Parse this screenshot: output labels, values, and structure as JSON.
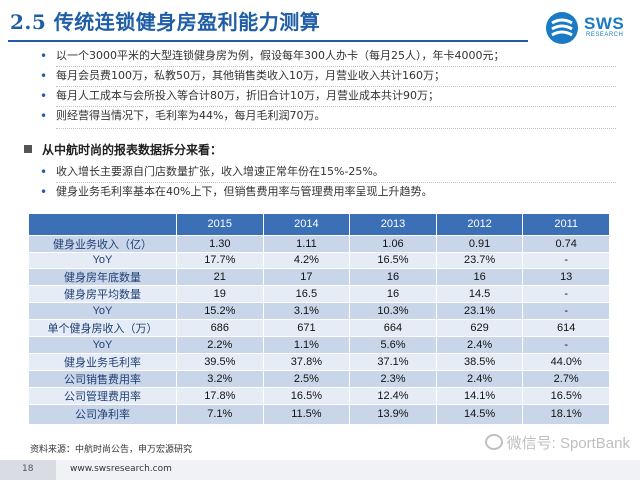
{
  "header": {
    "title": "2.5 传统连锁健身房盈利能力测算",
    "logo_text": "SWS",
    "logo_sub": "RESEARCH"
  },
  "intro_bullets": [
    "以一个3000平米的大型连锁健身房为例，假设每年300人办卡（每月25人），年卡4000元；",
    "每月会员费100万，私教50万，其他销售类收入10万，月营业收入共计160万；",
    "每月人工成本与会所投入等合计80万，折旧合计10万，月营业成本共计90万；",
    "则经营得当情况下，毛利率为44%，每月毛利润70万。"
  ],
  "section_title": "从中航时尚的报表数据拆分来看：",
  "analysis_bullets": [
    "收入增长主要源自门店数量扩张，收入增速正常年份在15%-25%。",
    "健身业务毛利率基本在40%上下，但销售费用率与管理费用率呈现上升趋势。"
  ],
  "table": {
    "headers": [
      "",
      "2015",
      "2014",
      "2013",
      "2012",
      "2011"
    ],
    "rows": [
      [
        "健身业务收入（亿）",
        "1.30",
        "1.11",
        "1.06",
        "0.91",
        "0.74"
      ],
      [
        "YoY",
        "17.7%",
        "4.2%",
        "16.5%",
        "23.7%",
        "-"
      ],
      [
        "健身房年底数量",
        "21",
        "17",
        "16",
        "16",
        "13"
      ],
      [
        "健身房平均数量",
        "19",
        "16.5",
        "16",
        "14.5",
        "-"
      ],
      [
        "YoY",
        "15.2%",
        "3.1%",
        "10.3%",
        "23.1%",
        "-"
      ],
      [
        "单个健身房收入（万）",
        "686",
        "671",
        "664",
        "629",
        "614"
      ],
      [
        "YoY",
        "2.2%",
        "1.1%",
        "5.6%",
        "2.4%",
        "-"
      ],
      [
        "健身业务毛利率",
        "39.5%",
        "37.8%",
        "37.1%",
        "38.5%",
        "44.0%"
      ],
      [
        "公司销售费用率",
        "3.2%",
        "2.5%",
        "2.3%",
        "2.4%",
        "2.7%"
      ],
      [
        "公司管理费用率",
        "17.8%",
        "16.5%",
        "12.4%",
        "14.1%",
        "16.5%"
      ],
      [
        "公司净利率",
        "7.1%",
        "11.5%",
        "13.9%",
        "14.5%",
        "18.1%"
      ]
    ]
  },
  "source": "资料来源：中航时尚公告，申万宏源研究",
  "watermark": "微信号: SportBank",
  "footer": {
    "page_number": "18",
    "url": "www.swsresearch.com"
  },
  "colors": {
    "title": "#1f5ea6",
    "table_header": "#3b6fb6",
    "row_dark": "#c9d6ea",
    "row_light": "#e6ecf6"
  }
}
